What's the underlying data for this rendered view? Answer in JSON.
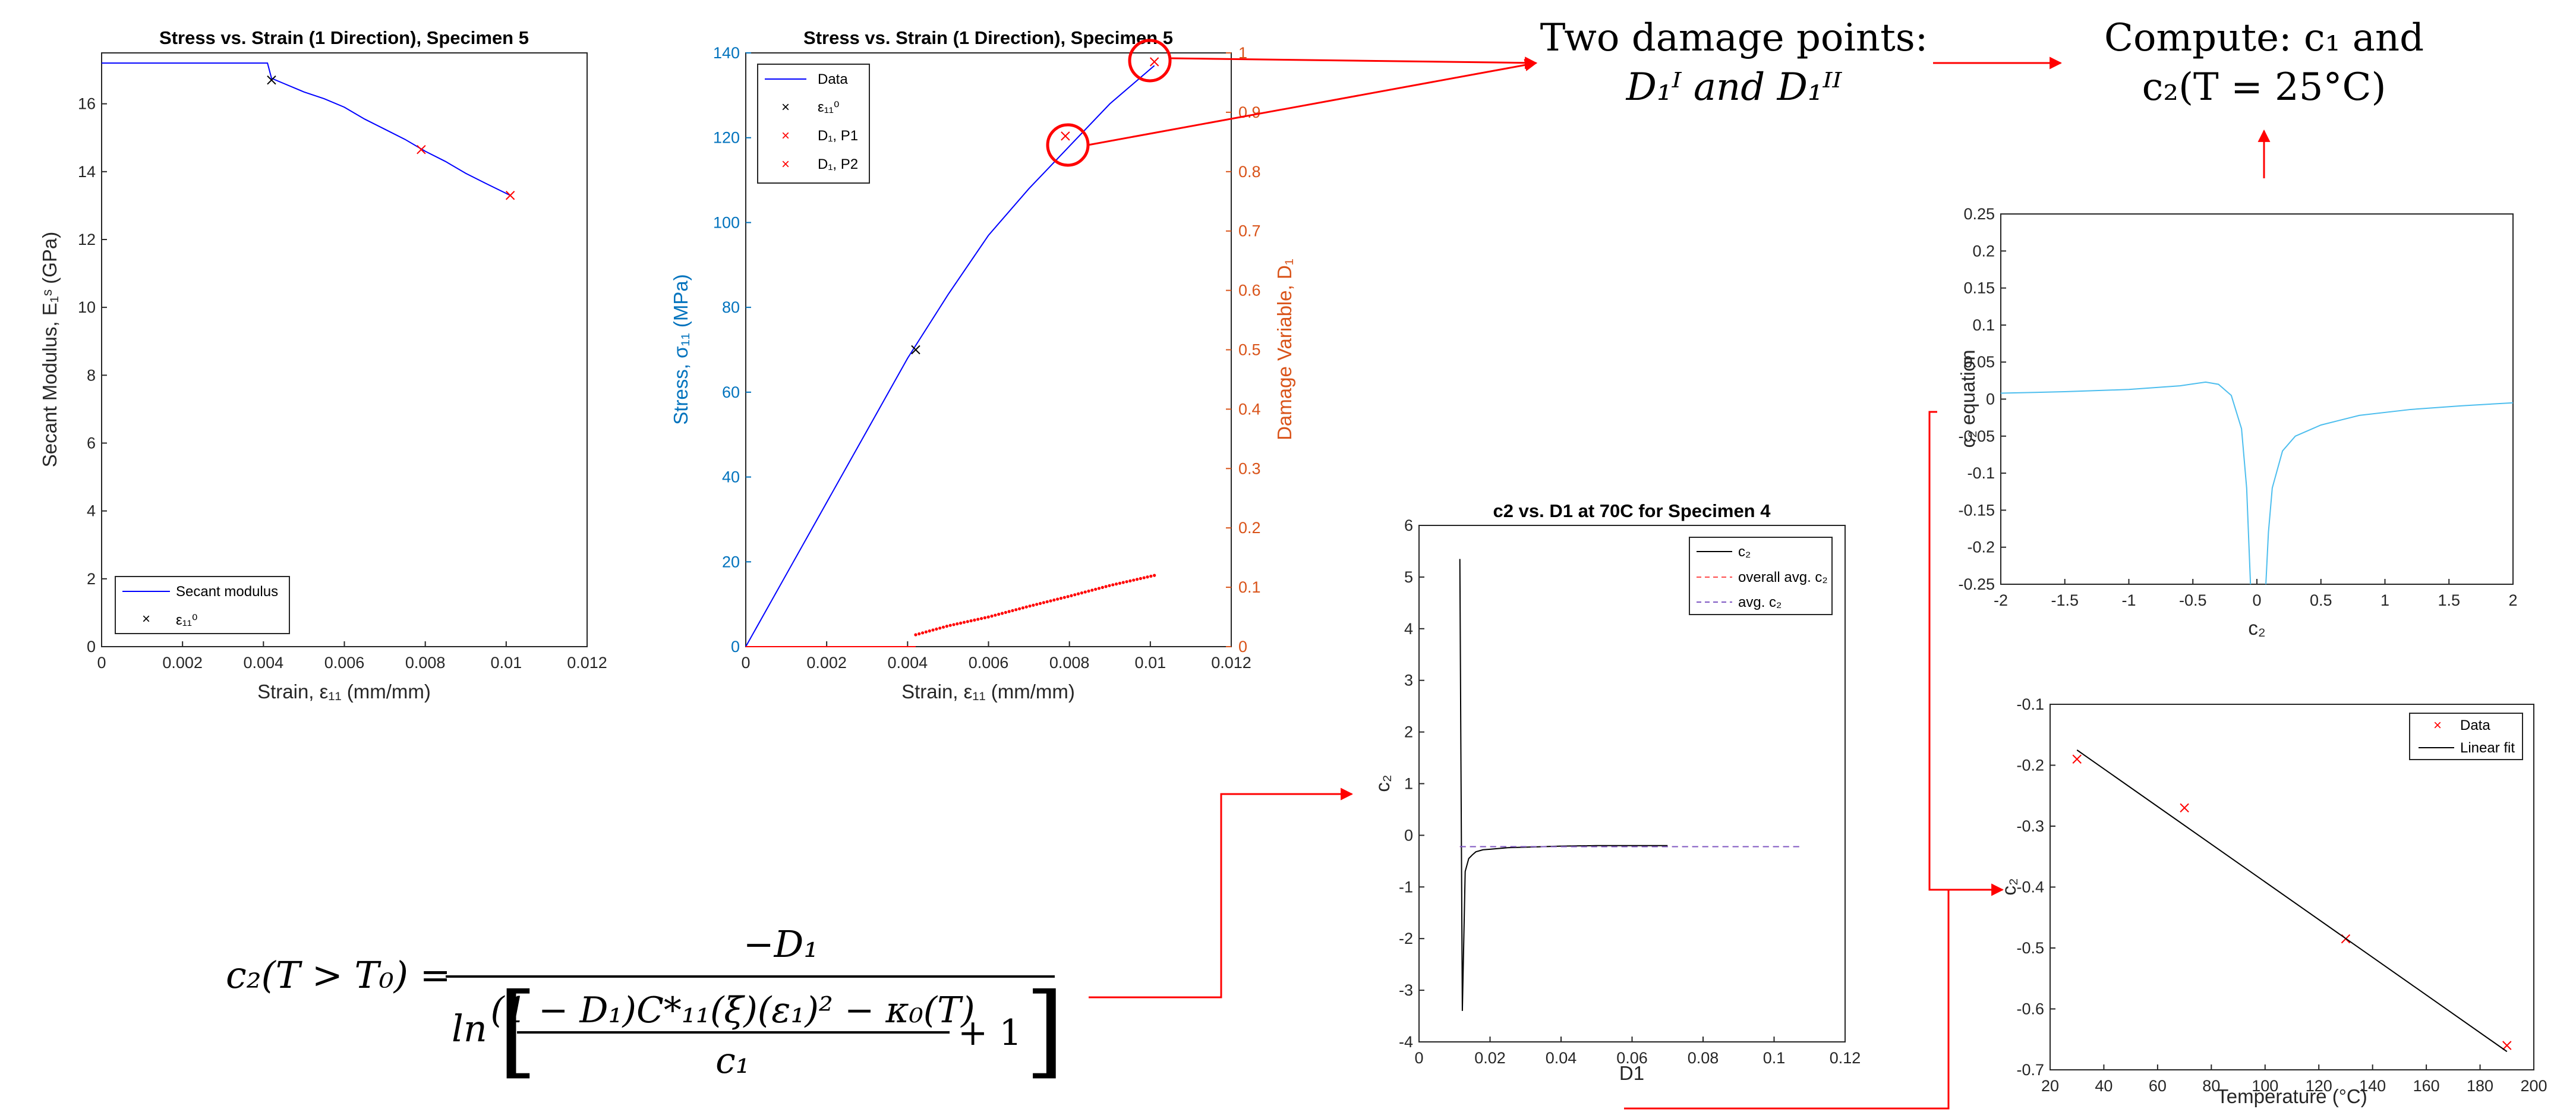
{
  "notes": {
    "two_damage_points": "Two damage points:",
    "damage_points_formula": "D₁ᴵ and D₁ᴵᴵ",
    "compute_line1": "Compute: c₁ and",
    "compute_line2": "c₂(T = 25°C)"
  },
  "equation": {
    "lhs": "c₂(T > T₀) =",
    "numerator": "−D₁",
    "denominator_ln": "ln",
    "denominator_top": "(1 − D₁)C*₁₁(ξ)(ε₁)² − κ₀(T)",
    "denominator_plus": "+ 1",
    "denominator_bottom": "c₁"
  },
  "colors": {
    "blue_series": "#0000ff",
    "red_marker": "#ff0000",
    "left_axis_blue": "#0072bd",
    "right_axis_orange": "#d95319",
    "light_blue_curve": "#4dbeee",
    "arrow_red": "#ff0000",
    "mean_line_red": "#ff4d4d"
  },
  "chart_data": [
    {
      "id": "secant",
      "type": "line",
      "title": "Stress vs. Strain (1 Direction), Specimen 5",
      "xlabel": "Strain, ε₁₁ (mm/mm)",
      "ylabel": "Secant Modulus, E₁ˢ (GPa)",
      "xlim": [
        0,
        0.012
      ],
      "ylim": [
        0,
        17.5
      ],
      "xticks": [
        "0",
        "0.002",
        "0.004",
        "0.006",
        "0.008",
        "0.01",
        "0.012"
      ],
      "yticks": [
        "0",
        "2",
        "4",
        "6",
        "8",
        "10",
        "12",
        "14",
        "16"
      ],
      "legend_position": "bottom-right",
      "series": [
        {
          "name": "Secant modulus",
          "style": "line",
          "x": [
            0,
            0.001,
            0.002,
            0.003,
            0.0041,
            0.0042,
            0.0045,
            0.005,
            0.0055,
            0.006,
            0.0065,
            0.007,
            0.0075,
            0.008,
            0.0085,
            0.009,
            0.0095,
            0.0101
          ],
          "y": [
            17.2,
            17.2,
            17.2,
            17.2,
            17.2,
            16.75,
            16.6,
            16.35,
            16.15,
            15.9,
            15.55,
            15.25,
            14.95,
            14.6,
            14.3,
            13.95,
            13.65,
            13.3
          ]
        },
        {
          "name": "ε₁₁⁰",
          "style": "marker",
          "marker": "x",
          "color": "black",
          "x": [
            0.0042
          ],
          "y": [
            16.7
          ]
        },
        {
          "name": "",
          "style": "marker",
          "marker": "x",
          "color": "red",
          "x": [
            0.0079,
            0.0101
          ],
          "y": [
            14.65,
            13.3
          ]
        }
      ]
    },
    {
      "id": "stress",
      "type": "line",
      "title": "Stress vs. Strain (1 Direction), Specimen 5",
      "xlabel": "Strain, ε₁₁ (mm/mm)",
      "ylabel": "Stress, σ₁₁ (MPa)",
      "ylabel_right": "Damage Variable, D₁",
      "xlim": [
        0,
        0.012
      ],
      "ylim": [
        0,
        140
      ],
      "ylim_right": [
        0,
        1
      ],
      "xticks": [
        "0",
        "0.002",
        "0.004",
        "0.006",
        "0.008",
        "0.01",
        "0.012"
      ],
      "yticks": [
        "0",
        "20",
        "40",
        "60",
        "80",
        "100",
        "120",
        "140"
      ],
      "yticks_right": [
        "0",
        "0.1",
        "0.2",
        "0.3",
        "0.4",
        "0.5",
        "0.6",
        "0.7",
        "0.8",
        "0.9",
        "1"
      ],
      "legend_position": "top-left",
      "series": [
        {
          "name": "Data",
          "style": "line",
          "color": "blue",
          "x": [
            0,
            0.001,
            0.002,
            0.003,
            0.004,
            0.005,
            0.006,
            0.007,
            0.008,
            0.009,
            0.0101
          ],
          "y": [
            0,
            17,
            34,
            51,
            68,
            83,
            97,
            108,
            118,
            128,
            137
          ]
        },
        {
          "name": "ε₁₁⁰",
          "style": "marker",
          "marker": "x",
          "color": "black",
          "x": [
            0.0042
          ],
          "y": [
            70
          ]
        },
        {
          "name": "D₁, P1",
          "style": "marker",
          "marker": "x",
          "color": "red",
          "axis": "right",
          "x": [
            0.0079
          ],
          "y": [
            0.86
          ]
        },
        {
          "name": "D₁, P2",
          "style": "marker",
          "marker": "x",
          "color": "red",
          "axis": "right",
          "x": [
            0.0101
          ],
          "y": [
            0.985
          ]
        },
        {
          "name": "",
          "style": "dots",
          "color": "red",
          "axis": "right",
          "x": [
            0,
            0.0042,
            0.005,
            0.006,
            0.007,
            0.008,
            0.009,
            0.0101
          ],
          "y": [
            0,
            0.02,
            0.035,
            0.05,
            0.068,
            0.085,
            0.103,
            0.12
          ]
        }
      ]
    },
    {
      "id": "c2d1",
      "type": "line",
      "title": "c2 vs. D1 at 70C for Specimen 4",
      "xlabel": "D1",
      "ylabel": "c₂",
      "xlim": [
        0,
        0.12
      ],
      "ylim": [
        -4,
        6
      ],
      "xticks": [
        "0",
        "0.02",
        "0.04",
        "0.06",
        "0.08",
        "0.1",
        "0.12"
      ],
      "yticks": [
        "-4",
        "-3",
        "-2",
        "-1",
        "0",
        "1",
        "2",
        "3",
        "4",
        "5",
        "6"
      ],
      "legend_position": "top-right",
      "series": [
        {
          "name": "c₂",
          "style": "line",
          "color": "black",
          "x": [
            0.0115,
            0.0118,
            0.0122,
            0.013,
            0.014,
            0.015,
            0.016,
            0.018,
            0.02,
            0.025,
            0.03,
            0.035,
            0.04,
            0.05,
            0.06,
            0.07
          ],
          "y": [
            5.35,
            1.5,
            -3.4,
            -0.7,
            -0.45,
            -0.38,
            -0.32,
            -0.28,
            -0.27,
            -0.24,
            -0.23,
            -0.22,
            -0.21,
            -0.2,
            -0.2,
            -0.2
          ]
        },
        {
          "name": "overall avg. c₂",
          "style": "dashed",
          "color": "red",
          "x": [
            0.0115,
            0.108
          ],
          "y": [
            -0.22,
            -0.22
          ]
        },
        {
          "name": "avg. c₂",
          "style": "dashed",
          "color": "blue",
          "x": [
            0.0115,
            0.108
          ],
          "y": [
            -0.22,
            -0.22
          ]
        }
      ]
    },
    {
      "id": "c2eq",
      "type": "line",
      "title": "",
      "xlabel": "c₂",
      "ylabel": "c₂ equation",
      "xlim": [
        -2,
        2
      ],
      "ylim": [
        -0.25,
        0.25
      ],
      "xticks": [
        "-2",
        "-1.5",
        "-1",
        "-0.5",
        "0",
        "0.5",
        "1",
        "1.5",
        "2"
      ],
      "yticks": [
        "-0.25",
        "-0.2",
        "-0.15",
        "-0.1",
        "-0.05",
        "0",
        "0.05",
        "0.1",
        "0.15",
        "0.2",
        "0.25"
      ],
      "series": [
        {
          "name": "",
          "style": "line",
          "color": "lightblue",
          "x": [
            -2,
            -1.5,
            -1,
            -0.6,
            -0.4,
            -0.3,
            -0.2,
            -0.12,
            -0.08,
            -0.05
          ],
          "y": [
            0.008,
            0.01,
            0.013,
            0.018,
            0.023,
            0.02,
            0.005,
            -0.04,
            -0.12,
            -0.25
          ]
        },
        {
          "name": "",
          "style": "line",
          "color": "lightblue",
          "x": [
            0.07,
            0.09,
            0.12,
            0.2,
            0.3,
            0.5,
            0.8,
            1.2,
            1.6,
            2
          ],
          "y": [
            -0.25,
            -0.18,
            -0.12,
            -0.07,
            -0.05,
            -0.035,
            -0.022,
            -0.014,
            -0.009,
            -0.005
          ]
        }
      ]
    },
    {
      "id": "linfit",
      "type": "scatter",
      "title": "",
      "xlabel": "Temperature (°C)",
      "ylabel": "c₂",
      "xlim": [
        20,
        200
      ],
      "ylim": [
        -0.7,
        -0.1
      ],
      "xticks": [
        "20",
        "40",
        "60",
        "80",
        "100",
        "120",
        "140",
        "160",
        "180",
        "200"
      ],
      "yticks": [
        "-0.7",
        "-0.6",
        "-0.5",
        "-0.4",
        "-0.3",
        "-0.2",
        "-0.1"
      ],
      "legend_position": "top-right",
      "series": [
        {
          "name": "Data",
          "style": "marker",
          "marker": "x",
          "color": "red",
          "x": [
            30,
            70,
            130,
            190
          ],
          "y": [
            -0.19,
            -0.27,
            -0.485,
            -0.66
          ]
        },
        {
          "name": "Linear fit",
          "style": "line",
          "color": "black",
          "x": [
            30,
            190
          ],
          "y": [
            -0.175,
            -0.67
          ]
        }
      ]
    }
  ]
}
